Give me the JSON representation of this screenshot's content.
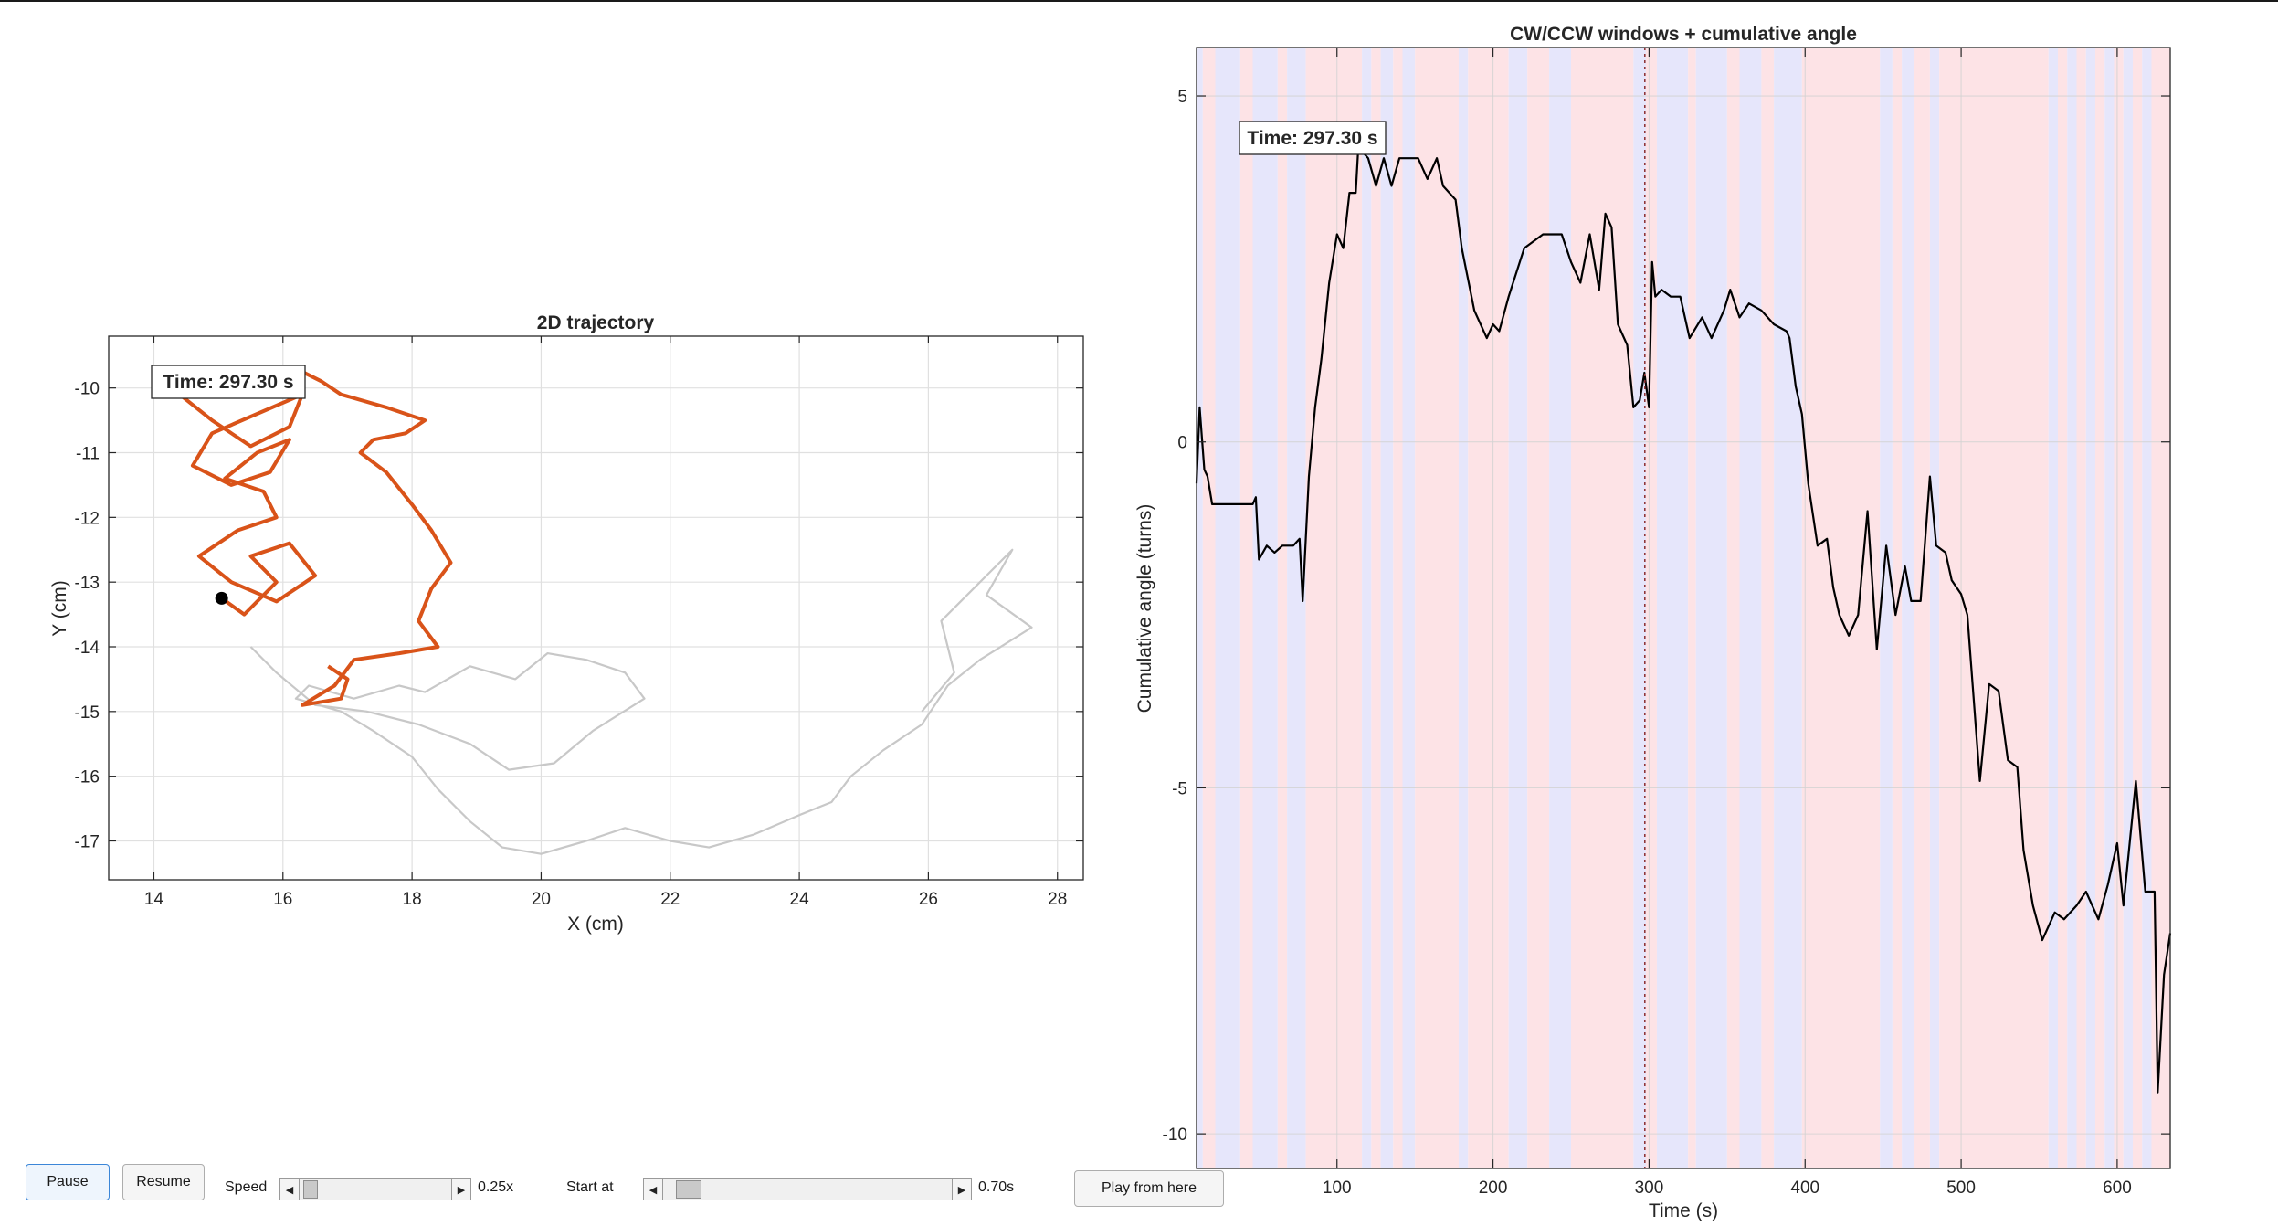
{
  "left_plot": {
    "title": "2D trajectory",
    "xlabel": "X (cm)",
    "ylabel": "Y (cm)",
    "time_label": "Time: 297.30 s",
    "xticks": [
      "14",
      "16",
      "18",
      "20",
      "22",
      "24",
      "26",
      "28"
    ],
    "yticks": [
      "-10",
      "-11",
      "-12",
      "-13",
      "-14",
      "-15",
      "-16",
      "-17"
    ]
  },
  "right_plot": {
    "title": "CW/CCW windows + cumulative angle",
    "xlabel": "Time (s)",
    "ylabel": "Cumulative angle (turns)",
    "time_label": "Time: 297.30 s",
    "xticks": [
      "100",
      "200",
      "300",
      "400",
      "500",
      "600"
    ],
    "yticks": [
      "5",
      "0",
      "-5",
      "-10"
    ]
  },
  "controls": {
    "pause_label": "Pause",
    "resume_label": "Resume",
    "speed_label": "Speed",
    "speed_value": "0.25x",
    "speed_fraction": 0.03,
    "start_label": "Start at",
    "start_value": "0.70s",
    "start_fraction": 0.05,
    "play_label": "Play from here"
  },
  "colors": {
    "trail": "#d95319",
    "history": "#c8c8c8",
    "cw_window": "#fde3e6",
    "ccw_window": "#e6e6fb",
    "cursor": "#8b2d2d"
  },
  "chart_data": [
    {
      "type": "line",
      "title": "2D trajectory",
      "xlabel": "X (cm)",
      "ylabel": "Y (cm)",
      "xlim": [
        13.3,
        28.4
      ],
      "ylim": [
        -17.6,
        -9.2
      ],
      "grid": true,
      "current_point": {
        "x": 15.05,
        "y": -13.25
      },
      "series": [
        {
          "x": [
            25.9,
            26.4,
            26.2,
            26.8,
            27.3,
            26.9,
            27.6,
            26.8,
            26.3,
            25.9,
            25.3,
            24.8,
            24.5,
            24.0,
            23.3,
            22.6,
            22.0,
            21.3,
            20.7,
            20.0,
            19.4,
            18.9,
            18.4,
            18.0,
            17.4,
            16.9,
            16.2,
            16.4,
            17.1,
            17.8,
            18.2,
            18.9,
            19.6,
            20.1,
            20.7,
            21.3,
            21.6,
            20.8,
            20.2,
            19.5,
            18.9,
            18.1,
            17.3,
            16.5,
            15.9,
            15.5
          ],
          "y": [
            -15.0,
            -14.4,
            -13.6,
            -13.0,
            -12.5,
            -13.2,
            -13.7,
            -14.2,
            -14.6,
            -15.2,
            -15.6,
            -16.0,
            -16.4,
            -16.6,
            -16.9,
            -17.1,
            -17.0,
            -16.8,
            -17.0,
            -17.2,
            -17.1,
            -16.7,
            -16.2,
            -15.7,
            -15.3,
            -15.0,
            -14.8,
            -14.6,
            -14.8,
            -14.6,
            -14.7,
            -14.3,
            -14.5,
            -14.1,
            -14.2,
            -14.4,
            -14.8,
            -15.3,
            -15.8,
            -15.9,
            -15.5,
            -15.2,
            -15.0,
            -14.9,
            -14.4,
            -14.0
          ]
        },
        {
          "x": [
            15.05,
            15.4,
            15.9,
            15.5,
            16.1,
            16.5,
            15.9,
            15.2,
            14.7,
            15.3,
            15.9,
            15.7,
            15.1,
            15.6,
            16.1,
            15.8,
            15.2,
            14.6,
            14.9,
            15.6,
            16.3,
            16.1,
            15.5,
            14.9,
            14.4,
            14.8,
            15.4,
            16.2,
            16.6,
            16.9,
            17.6,
            18.2,
            17.9,
            17.4,
            17.2,
            17.6,
            18.0,
            18.3,
            18.6,
            18.3,
            18.1,
            18.4,
            17.8,
            17.1,
            16.8,
            16.3,
            16.9,
            17.0,
            16.7
          ],
          "y": [
            -13.25,
            -13.5,
            -13.0,
            -12.6,
            -12.4,
            -12.9,
            -13.3,
            -13.0,
            -12.6,
            -12.2,
            -12.0,
            -11.6,
            -11.4,
            -11.0,
            -10.8,
            -11.3,
            -11.5,
            -11.2,
            -10.7,
            -10.4,
            -10.1,
            -10.6,
            -10.9,
            -10.5,
            -10.1,
            -9.9,
            -9.8,
            -9.7,
            -9.9,
            -10.1,
            -10.3,
            -10.5,
            -10.7,
            -10.8,
            -11.0,
            -11.3,
            -11.8,
            -12.2,
            -12.7,
            -13.1,
            -13.6,
            -14.0,
            -14.1,
            -14.2,
            -14.6,
            -14.9,
            -14.8,
            -14.5,
            -14.3
          ]
        }
      ]
    },
    {
      "type": "line",
      "title": "CW/CCW windows + cumulative angle",
      "xlabel": "Time (s)",
      "ylabel": "Cumulative angle (turns)",
      "xlim": [
        10,
        634
      ],
      "ylim": [
        -10.5,
        5.7
      ],
      "grid": true,
      "cursor_x": 297.3,
      "windows": [
        {
          "start": 10,
          "end": 14,
          "dir": "ccw"
        },
        {
          "start": 14,
          "end": 22,
          "dir": "cw"
        },
        {
          "start": 22,
          "end": 38,
          "dir": "ccw"
        },
        {
          "start": 38,
          "end": 46,
          "dir": "cw"
        },
        {
          "start": 46,
          "end": 62,
          "dir": "ccw"
        },
        {
          "start": 62,
          "end": 68,
          "dir": "cw"
        },
        {
          "start": 68,
          "end": 80,
          "dir": "ccw"
        },
        {
          "start": 80,
          "end": 116,
          "dir": "cw"
        },
        {
          "start": 116,
          "end": 122,
          "dir": "ccw"
        },
        {
          "start": 122,
          "end": 128,
          "dir": "cw"
        },
        {
          "start": 128,
          "end": 136,
          "dir": "ccw"
        },
        {
          "start": 136,
          "end": 142,
          "dir": "cw"
        },
        {
          "start": 142,
          "end": 150,
          "dir": "ccw"
        },
        {
          "start": 150,
          "end": 178,
          "dir": "cw"
        },
        {
          "start": 178,
          "end": 184,
          "dir": "ccw"
        },
        {
          "start": 184,
          "end": 210,
          "dir": "cw"
        },
        {
          "start": 210,
          "end": 222,
          "dir": "ccw"
        },
        {
          "start": 222,
          "end": 236,
          "dir": "cw"
        },
        {
          "start": 236,
          "end": 250,
          "dir": "ccw"
        },
        {
          "start": 250,
          "end": 290,
          "dir": "cw"
        },
        {
          "start": 290,
          "end": 298,
          "dir": "ccw"
        },
        {
          "start": 298,
          "end": 305,
          "dir": "cw"
        },
        {
          "start": 305,
          "end": 325,
          "dir": "ccw"
        },
        {
          "start": 325,
          "end": 330,
          "dir": "cw"
        },
        {
          "start": 330,
          "end": 350,
          "dir": "ccw"
        },
        {
          "start": 350,
          "end": 358,
          "dir": "cw"
        },
        {
          "start": 358,
          "end": 372,
          "dir": "ccw"
        },
        {
          "start": 372,
          "end": 380,
          "dir": "cw"
        },
        {
          "start": 380,
          "end": 398,
          "dir": "ccw"
        },
        {
          "start": 398,
          "end": 448,
          "dir": "cw"
        },
        {
          "start": 448,
          "end": 456,
          "dir": "ccw"
        },
        {
          "start": 456,
          "end": 462,
          "dir": "cw"
        },
        {
          "start": 462,
          "end": 470,
          "dir": "ccw"
        },
        {
          "start": 470,
          "end": 480,
          "dir": "cw"
        },
        {
          "start": 480,
          "end": 486,
          "dir": "ccw"
        },
        {
          "start": 486,
          "end": 556,
          "dir": "cw"
        },
        {
          "start": 556,
          "end": 562,
          "dir": "ccw"
        },
        {
          "start": 562,
          "end": 568,
          "dir": "cw"
        },
        {
          "start": 568,
          "end": 574,
          "dir": "ccw"
        },
        {
          "start": 574,
          "end": 580,
          "dir": "cw"
        },
        {
          "start": 580,
          "end": 586,
          "dir": "ccw"
        },
        {
          "start": 586,
          "end": 592,
          "dir": "cw"
        },
        {
          "start": 592,
          "end": 598,
          "dir": "ccw"
        },
        {
          "start": 598,
          "end": 604,
          "dir": "cw"
        },
        {
          "start": 604,
          "end": 610,
          "dir": "ccw"
        },
        {
          "start": 610,
          "end": 616,
          "dir": "cw"
        },
        {
          "start": 616,
          "end": 622,
          "dir": "ccw"
        },
        {
          "start": 622,
          "end": 634,
          "dir": "cw"
        }
      ],
      "series": [
        {
          "x": [
            10,
            12,
            15,
            17,
            20,
            23,
            35,
            46,
            48,
            50,
            55,
            60,
            65,
            72,
            76,
            78,
            80,
            82,
            86,
            90,
            95,
            100,
            104,
            108,
            112,
            114,
            116,
            120,
            125,
            130,
            135,
            140,
            146,
            152,
            158,
            164,
            168,
            172,
            176,
            180,
            188,
            196,
            200,
            204,
            210,
            220,
            232,
            244,
            250,
            256,
            262,
            268,
            272,
            276,
            280,
            286,
            290,
            294,
            297,
            300,
            302,
            304,
            308,
            314,
            320,
            326,
            334,
            340,
            348,
            352,
            358,
            364,
            372,
            380,
            388,
            390,
            394,
            398,
            402,
            408,
            414,
            418,
            422,
            428,
            434,
            440,
            446,
            452,
            458,
            464,
            468,
            474,
            480,
            484,
            490,
            494,
            500,
            504,
            512,
            518,
            524,
            530,
            536,
            540,
            546,
            552,
            560,
            566,
            574,
            580,
            588,
            594,
            600,
            604,
            612,
            618,
            624,
            626,
            630,
            634
          ],
          "y": [
            -0.6,
            0.5,
            -0.4,
            -0.5,
            -0.9,
            -0.9,
            -0.9,
            -0.9,
            -0.8,
            -1.7,
            -1.5,
            -1.6,
            -1.5,
            -1.5,
            -1.4,
            -2.3,
            -1.4,
            -0.5,
            0.5,
            1.2,
            2.3,
            3.0,
            2.8,
            3.6,
            3.6,
            4.4,
            4.2,
            4.1,
            3.7,
            4.1,
            3.7,
            4.1,
            4.1,
            4.1,
            3.8,
            4.1,
            3.7,
            3.6,
            3.5,
            2.8,
            1.9,
            1.5,
            1.7,
            1.6,
            2.1,
            2.8,
            3.0,
            3.0,
            2.6,
            2.3,
            3.0,
            2.2,
            3.3,
            3.1,
            1.7,
            1.4,
            0.5,
            0.6,
            1.0,
            0.5,
            2.6,
            2.1,
            2.2,
            2.1,
            2.1,
            1.5,
            1.8,
            1.5,
            1.9,
            2.2,
            1.8,
            2.0,
            1.9,
            1.7,
            1.6,
            1.5,
            0.8,
            0.4,
            -0.6,
            -1.5,
            -1.4,
            -2.1,
            -2.5,
            -2.8,
            -2.5,
            -1.0,
            -3.0,
            -1.5,
            -2.5,
            -1.8,
            -2.3,
            -2.3,
            -0.5,
            -1.5,
            -1.6,
            -2.0,
            -2.2,
            -2.5,
            -4.9,
            -3.5,
            -3.6,
            -4.6,
            -4.7,
            -5.9,
            -6.7,
            -7.2,
            -6.8,
            -6.9,
            -6.7,
            -6.5,
            -6.9,
            -6.4,
            -5.8,
            -6.7,
            -4.9,
            -6.5,
            -6.5,
            -9.4,
            -7.7,
            -7.1
          ]
        }
      ]
    }
  ]
}
